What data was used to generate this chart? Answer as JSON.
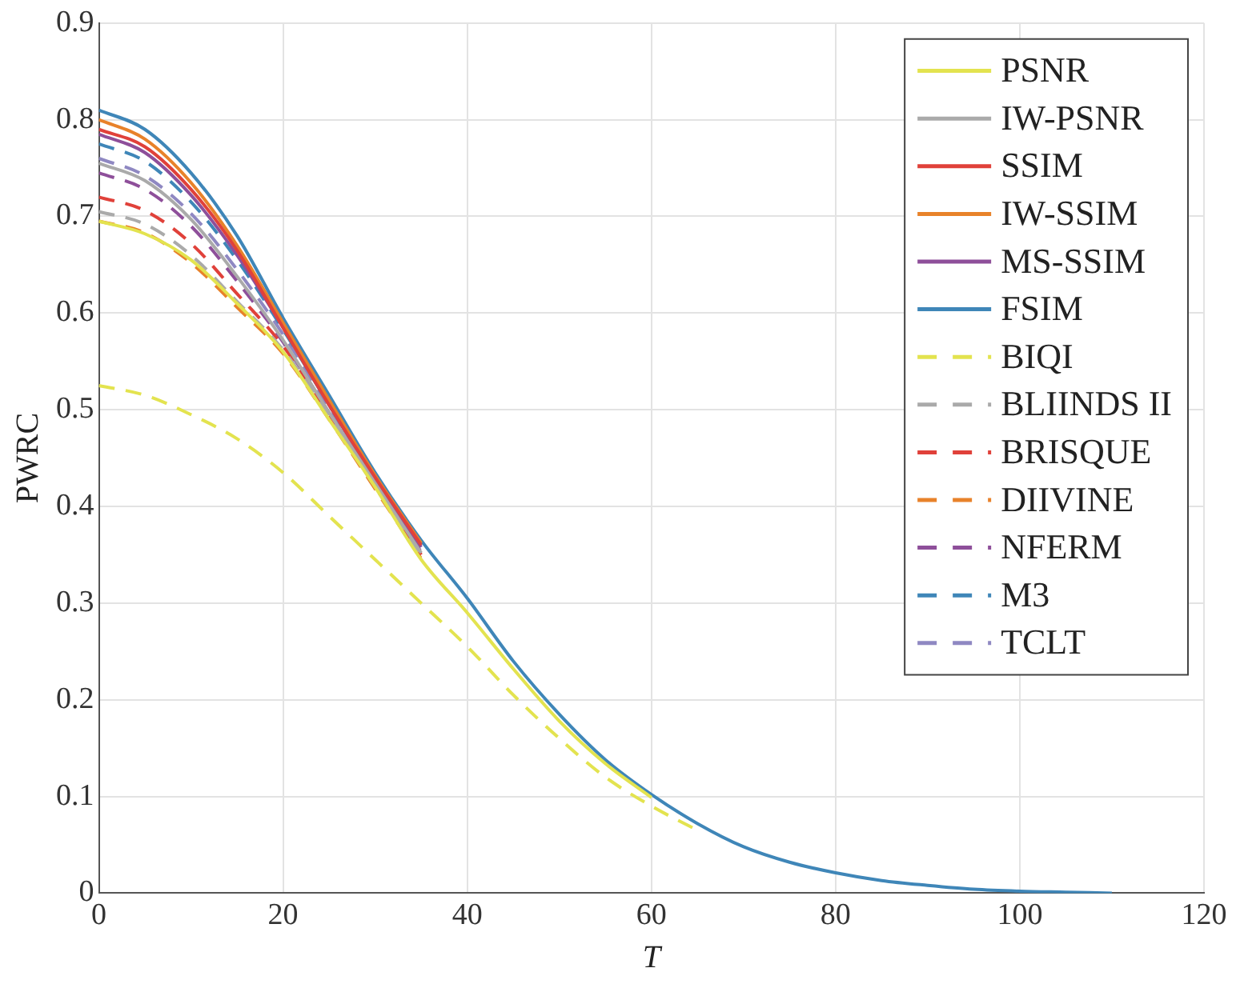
{
  "chart_data": {
    "type": "line",
    "xlabel": "T",
    "ylabel": "PWRC",
    "x": [
      0,
      5,
      10,
      15,
      20,
      25,
      30,
      35,
      40,
      45,
      50,
      55,
      60,
      65,
      70,
      75,
      80,
      85,
      90,
      95,
      100,
      105,
      110
    ],
    "xlim": [
      0,
      120
    ],
    "xticks": [
      0,
      20,
      40,
      60,
      80,
      100,
      120
    ],
    "ylim": [
      0,
      0.9
    ],
    "yticks": [
      0,
      0.1,
      0.2,
      0.3,
      0.4,
      0.5,
      0.6,
      0.7,
      0.8,
      0.9
    ],
    "grid": true,
    "legend": "top right",
    "marker": "none",
    "series": [
      {
        "name": "PSNR",
        "color": "#e3e34f",
        "line_style": "solid",
        "values": [
          0.695,
          0.682,
          0.655,
          0.61,
          0.56,
          0.49,
          0.42,
          0.345,
          0.29,
          0.232,
          0.178,
          0.134,
          0.099,
          null,
          null,
          null,
          null,
          null,
          null,
          null,
          null,
          null,
          null
        ]
      },
      {
        "name": "IW-PSNR",
        "color": "#aaaaaa",
        "line_style": "solid",
        "values": [
          0.755,
          0.737,
          0.697,
          0.638,
          0.572,
          0.497,
          0.424,
          0.352,
          null,
          null,
          null,
          null,
          null,
          null,
          null,
          null,
          null,
          null,
          null,
          null,
          null,
          null,
          null
        ]
      },
      {
        "name": "SSIM",
        "color": "#e0413a",
        "line_style": "solid",
        "values": [
          0.79,
          0.772,
          0.728,
          0.665,
          0.585,
          0.505,
          0.43,
          0.36,
          null,
          null,
          null,
          null,
          null,
          null,
          null,
          null,
          null,
          null,
          null,
          null,
          null,
          null,
          null
        ]
      },
      {
        "name": "IW-SSIM",
        "color": "#e8822a",
        "line_style": "solid",
        "values": [
          0.8,
          0.78,
          0.735,
          0.67,
          0.59,
          0.51,
          0.432,
          0.362,
          null,
          null,
          null,
          null,
          null,
          null,
          null,
          null,
          null,
          null,
          null,
          null,
          null,
          null,
          null
        ]
      },
      {
        "name": "MS-SSIM",
        "color": "#8e4f9a",
        "line_style": "solid",
        "values": [
          0.785,
          0.766,
          0.722,
          0.66,
          0.585,
          0.505,
          0.428,
          0.358,
          null,
          null,
          null,
          null,
          null,
          null,
          null,
          null,
          null,
          null,
          null,
          null,
          null,
          null,
          null
        ]
      },
      {
        "name": "FSIM",
        "color": "#3f86b8",
        "line_style": "solid",
        "values": [
          0.81,
          0.79,
          0.745,
          0.68,
          0.595,
          0.515,
          0.435,
          0.365,
          0.305,
          0.24,
          0.185,
          0.138,
          0.102,
          0.072,
          0.048,
          0.032,
          0.021,
          0.013,
          0.008,
          0.004,
          0.002,
          0.001,
          0
        ]
      },
      {
        "name": "BIQI",
        "color": "#e3e34f",
        "line_style": "dashed",
        "values": [
          0.525,
          0.515,
          0.495,
          0.47,
          0.435,
          0.39,
          0.345,
          0.3,
          0.255,
          0.205,
          0.16,
          0.12,
          0.09,
          0.065,
          null,
          null,
          null,
          null,
          null,
          null,
          null,
          null,
          null
        ]
      },
      {
        "name": "BLIINDS II",
        "color": "#aaaaaa",
        "line_style": "dashed",
        "values": [
          0.705,
          0.692,
          0.66,
          0.612,
          0.562,
          0.493,
          0.42,
          0.348,
          null,
          null,
          null,
          null,
          null,
          null,
          null,
          null,
          null,
          null,
          null,
          null,
          null,
          null,
          null
        ]
      },
      {
        "name": "BRISQUE",
        "color": "#e0413a",
        "line_style": "dashed",
        "values": [
          0.72,
          0.706,
          0.672,
          0.62,
          0.566,
          0.495,
          0.422,
          0.35,
          null,
          null,
          null,
          null,
          null,
          null,
          null,
          null,
          null,
          null,
          null,
          null,
          null,
          null,
          null
        ]
      },
      {
        "name": "DIIVINE",
        "color": "#e8822a",
        "line_style": "dashed",
        "values": [
          0.695,
          0.683,
          0.652,
          0.606,
          0.558,
          0.49,
          0.418,
          0.346,
          null,
          null,
          null,
          null,
          null,
          null,
          null,
          null,
          null,
          null,
          null,
          null,
          null,
          null,
          null
        ]
      },
      {
        "name": "NFERM",
        "color": "#8e4f9a",
        "line_style": "dashed",
        "values": [
          0.745,
          0.728,
          0.69,
          0.633,
          0.57,
          0.497,
          0.424,
          0.353,
          null,
          null,
          null,
          null,
          null,
          null,
          null,
          null,
          null,
          null,
          null,
          null,
          null,
          null,
          null
        ]
      },
      {
        "name": "M3",
        "color": "#3f86b8",
        "line_style": "dashed",
        "values": [
          0.775,
          0.757,
          0.715,
          0.655,
          0.583,
          0.505,
          0.43,
          0.36,
          null,
          null,
          null,
          null,
          null,
          null,
          null,
          null,
          null,
          null,
          null,
          null,
          null,
          null,
          null
        ]
      },
      {
        "name": "TCLT",
        "color": "#8f88c2",
        "line_style": "dashed",
        "values": [
          0.76,
          0.742,
          0.703,
          0.645,
          0.578,
          0.502,
          0.427,
          0.356,
          null,
          null,
          null,
          null,
          null,
          null,
          null,
          null,
          null,
          null,
          null,
          null,
          null,
          null,
          null
        ]
      }
    ]
  }
}
